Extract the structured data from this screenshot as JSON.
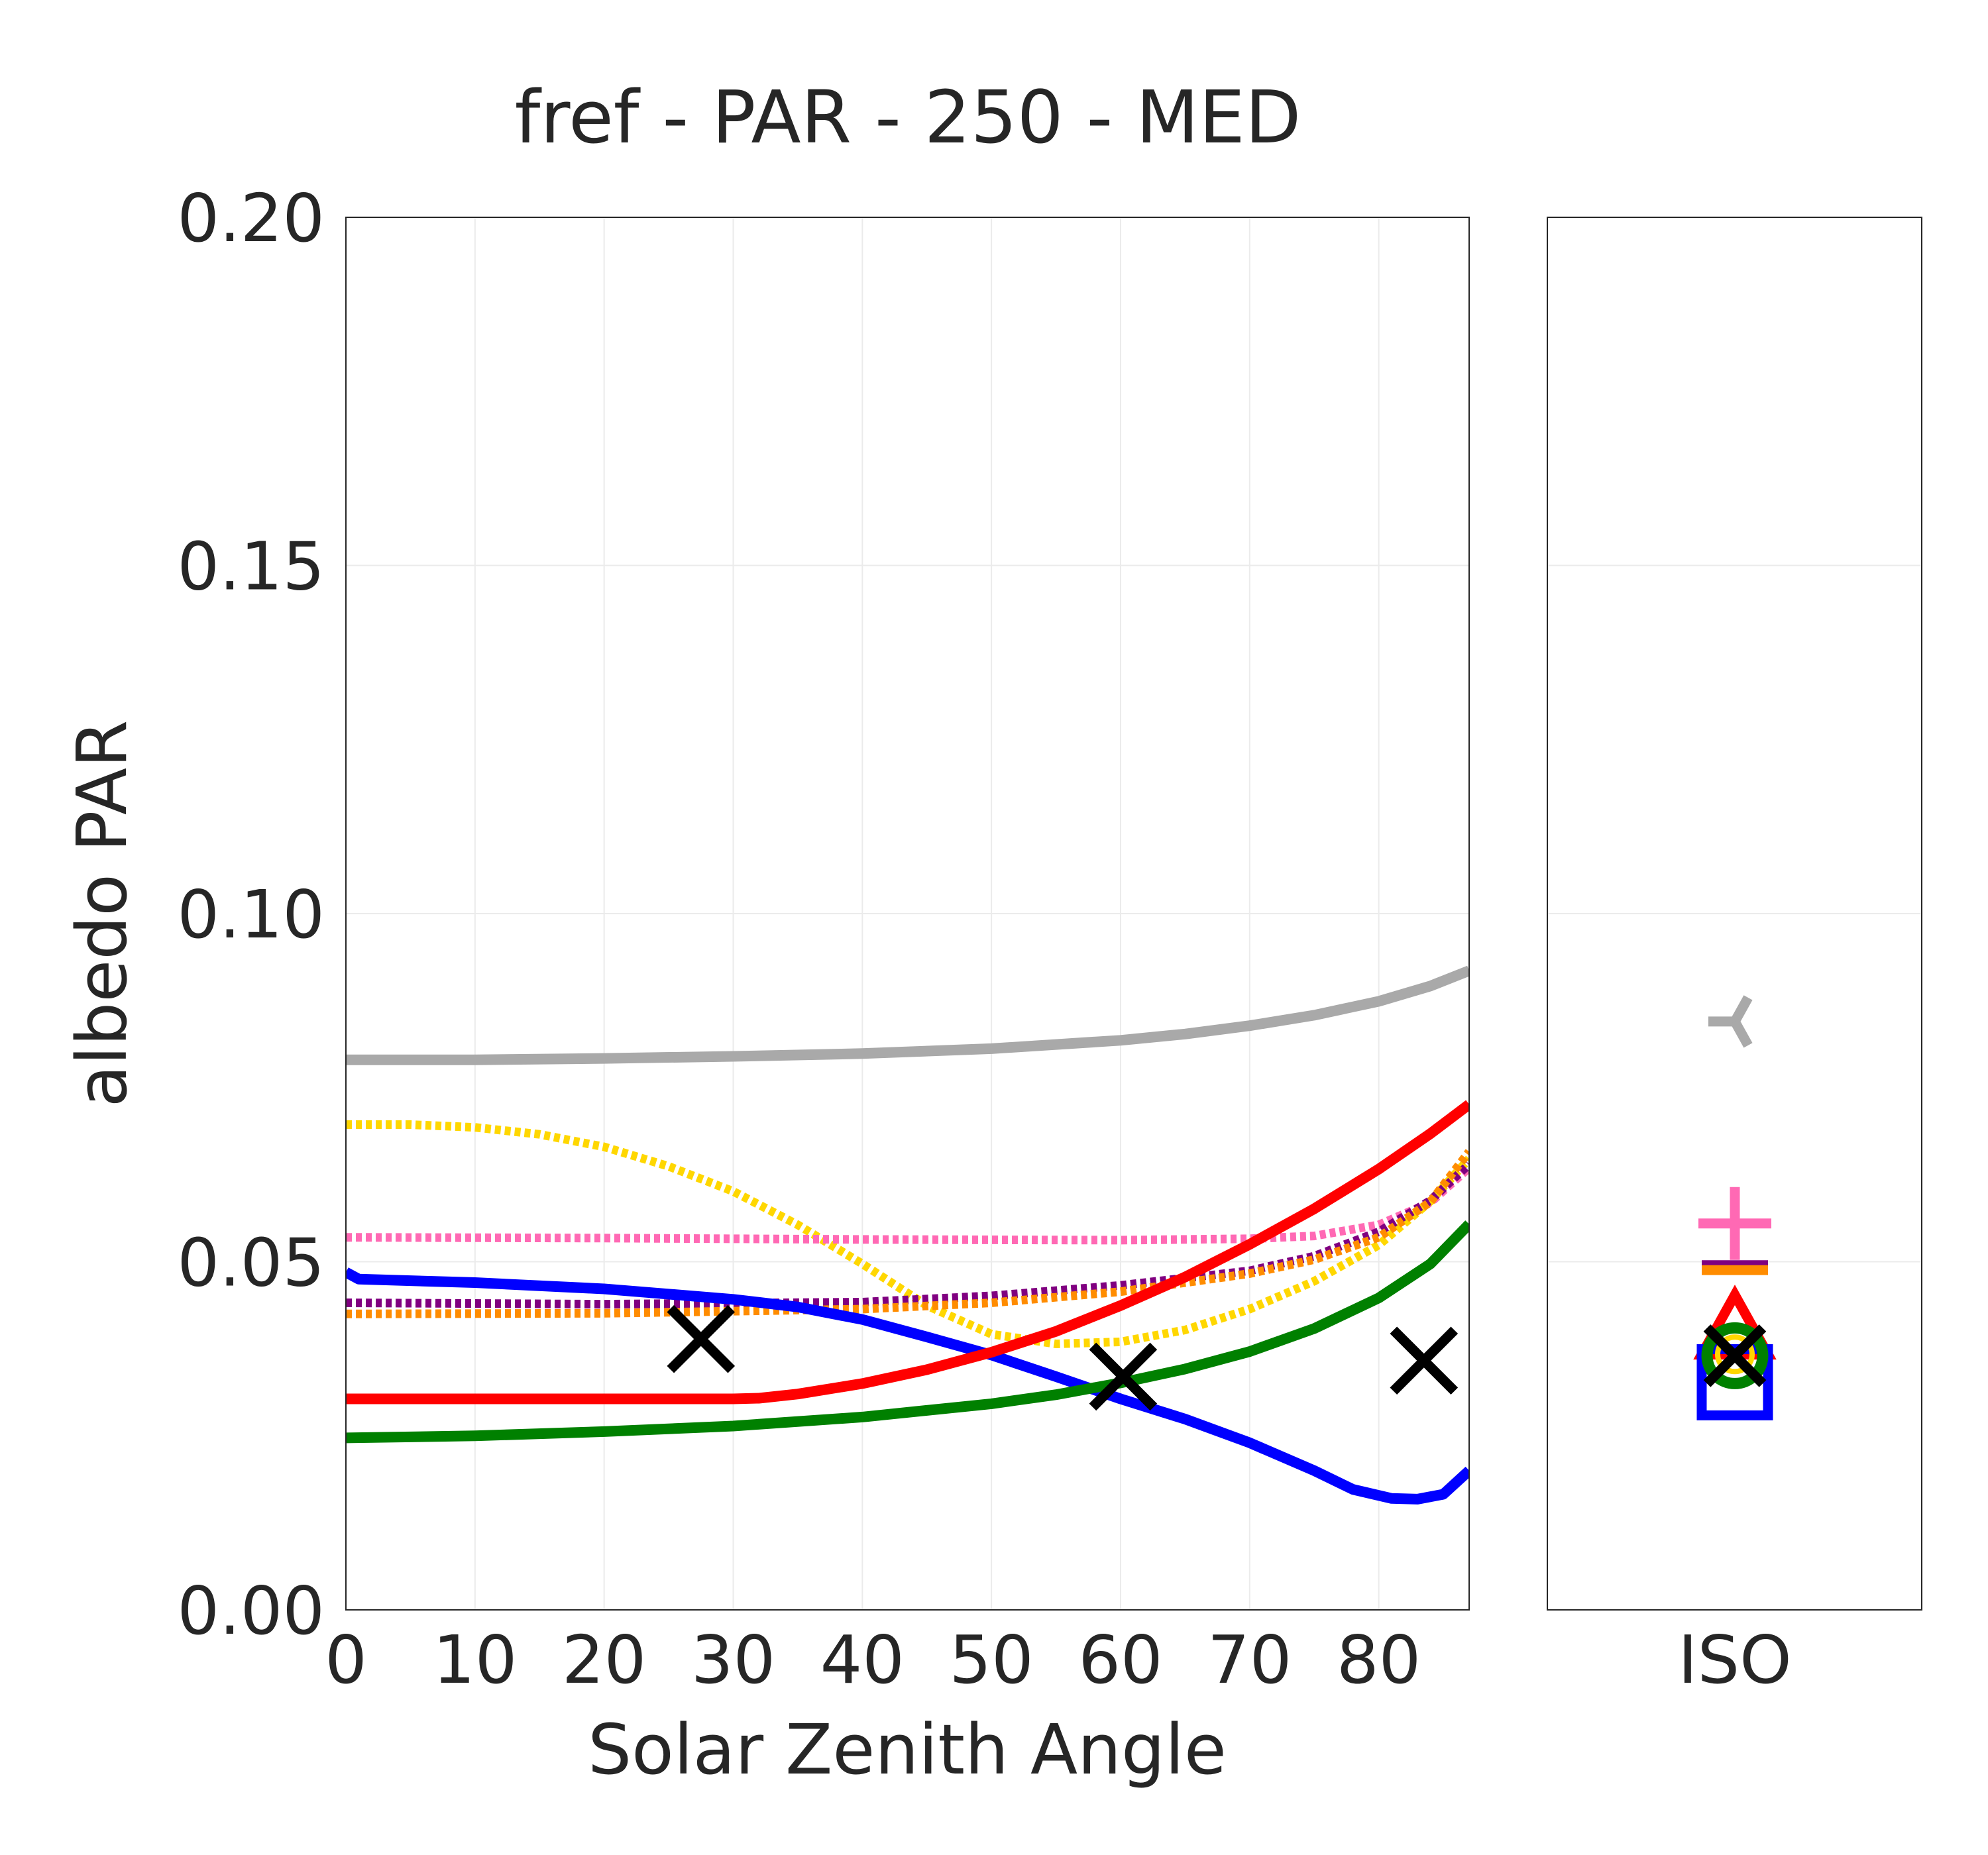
{
  "chart_data": [
    {
      "type": "line",
      "title": "fref - PAR - 250 - MED",
      "xlabel": "Solar Zenith Angle",
      "ylabel": "albedo PAR",
      "xlim": [
        0,
        87
      ],
      "ylim": [
        0,
        0.2
      ],
      "xticks": [
        "0",
        "10",
        "20",
        "30",
        "40",
        "50",
        "60",
        "70",
        "80"
      ],
      "yticks": [
        "0.00",
        "0.05",
        "0.10",
        "0.15",
        "0.20"
      ],
      "grid": true,
      "series": [
        {
          "color": "#a9a9a9",
          "style": "solid",
          "x": [
            0,
            10,
            20,
            30,
            40,
            50,
            60,
            65,
            70,
            75,
            80,
            84,
            87
          ],
          "y": [
            0.079,
            0.079,
            0.0792,
            0.0795,
            0.0799,
            0.0806,
            0.0818,
            0.0827,
            0.0839,
            0.0854,
            0.0874,
            0.0896,
            0.0918
          ]
        },
        {
          "color": "#ffd700",
          "style": "dotted",
          "x": [
            0,
            5,
            10,
            15,
            20,
            25,
            30,
            35,
            40,
            45,
            50,
            55,
            60,
            65,
            70,
            75,
            80,
            84,
            87
          ],
          "y": [
            0.0697,
            0.0697,
            0.0693,
            0.0683,
            0.0665,
            0.0637,
            0.0601,
            0.0553,
            0.0497,
            0.0437,
            0.0396,
            0.0382,
            0.0385,
            0.0402,
            0.0432,
            0.0472,
            0.0524,
            0.0587,
            0.0648
          ]
        },
        {
          "color": "#ff69b4",
          "style": "dotted",
          "x": [
            0,
            20,
            40,
            60,
            70,
            75,
            80,
            84,
            87
          ],
          "y": [
            0.0535,
            0.0534,
            0.0532,
            0.0531,
            0.0533,
            0.0537,
            0.0553,
            0.0585,
            0.0635
          ]
        },
        {
          "color": "#800080",
          "style": "dotted",
          "x": [
            0,
            20,
            40,
            50,
            60,
            70,
            75,
            80,
            84,
            87
          ],
          "y": [
            0.0441,
            0.0439,
            0.0442,
            0.0451,
            0.0466,
            0.0487,
            0.0508,
            0.0543,
            0.0588,
            0.064
          ]
        },
        {
          "color": "#ff8c00",
          "style": "dotted",
          "x": [
            0,
            20,
            40,
            50,
            60,
            70,
            75,
            80,
            84,
            87
          ],
          "y": [
            0.0425,
            0.0426,
            0.0432,
            0.0441,
            0.0457,
            0.0483,
            0.0503,
            0.0535,
            0.0586,
            0.0658
          ]
        },
        {
          "color": "#0000ff",
          "style": "solid",
          "x": [
            0,
            1,
            10,
            20,
            30,
            35,
            40,
            45,
            50,
            55,
            60,
            65,
            70,
            75,
            78,
            81,
            83,
            85,
            87
          ],
          "y": [
            0.0485,
            0.0475,
            0.047,
            0.0461,
            0.0446,
            0.0435,
            0.0417,
            0.0392,
            0.0366,
            0.0335,
            0.0303,
            0.0274,
            0.024,
            0.02,
            0.0173,
            0.016,
            0.0159,
            0.0166,
            0.02
          ]
        },
        {
          "color": "#ff0000",
          "style": "solid",
          "x": [
            0,
            10,
            20,
            30,
            32,
            35,
            40,
            45,
            50,
            55,
            60,
            65,
            70,
            75,
            80,
            84,
            87
          ],
          "y": [
            0.0303,
            0.0303,
            0.0303,
            0.0303,
            0.0304,
            0.031,
            0.0325,
            0.0345,
            0.037,
            0.04,
            0.0437,
            0.0478,
            0.0525,
            0.0576,
            0.0633,
            0.0684,
            0.0726
          ]
        },
        {
          "color": "#008000",
          "style": "solid",
          "x": [
            0,
            10,
            20,
            30,
            40,
            50,
            55,
            60,
            65,
            70,
            75,
            80,
            84,
            87
          ],
          "y": [
            0.0247,
            0.025,
            0.0256,
            0.0264,
            0.0277,
            0.0296,
            0.0309,
            0.0326,
            0.0346,
            0.0371,
            0.0404,
            0.0448,
            0.0497,
            0.0554
          ]
        }
      ],
      "markers": [
        {
          "x": 27.5,
          "y": 0.0389,
          "symbol": "x",
          "color": "#000000"
        },
        {
          "x": 60.2,
          "y": 0.0335,
          "symbol": "x",
          "color": "#000000"
        },
        {
          "x": 83.5,
          "y": 0.0358,
          "symbol": "x",
          "color": "#000000"
        }
      ]
    },
    {
      "type": "scatter",
      "categories": [
        "ISO"
      ],
      "xtick": "ISO",
      "ylim": [
        0,
        0.2
      ],
      "grid": true,
      "points": [
        {
          "y": 0.0845,
          "symbol": "tri_down",
          "color": "#a9a9a9"
        },
        {
          "y": 0.0555,
          "symbol": "plus",
          "color": "#ff69b4"
        },
        {
          "y": 0.0495,
          "symbol": "hline",
          "color": "#800080"
        },
        {
          "y": 0.0488,
          "symbol": "hline",
          "color": "#ff8c00"
        },
        {
          "y": 0.04,
          "symbol": "triangle",
          "color": "#ff0000"
        },
        {
          "y": 0.0365,
          "symbol": "square",
          "color": "#0000ff"
        },
        {
          "y": 0.0365,
          "symbol": "circle",
          "color": "#008000"
        },
        {
          "y": 0.0367,
          "symbol": "circle-small",
          "color": "#ffd700"
        },
        {
          "y": 0.0365,
          "symbol": "x",
          "color": "#000000"
        }
      ]
    }
  ]
}
